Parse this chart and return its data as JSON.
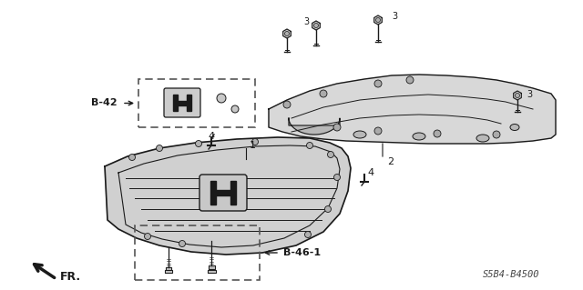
{
  "bg_color": "#ffffff",
  "line_color": "#1a1a1a",
  "fig_width": 6.4,
  "fig_height": 3.19,
  "part_ref_code": "S5B4-B4500",
  "fr_label": "FR.",
  "labels": {
    "B42": "B-42",
    "B461": "B-46-1",
    "num1": "1",
    "num2": "2",
    "num3a": "3",
    "num3b": "3",
    "num3c": "3",
    "num3d": "3",
    "num4a": "4",
    "num4b": "4"
  },
  "upper_part_color": "#d8d8d8",
  "grille_color": "#d0d0d0",
  "hole_color": "#b8b8b8"
}
